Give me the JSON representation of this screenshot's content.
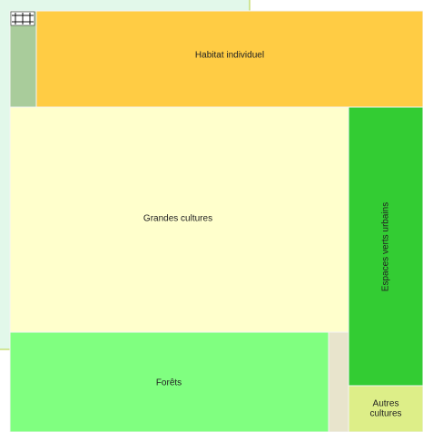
{
  "tiles": [
    {
      "label": "Habitat individuel"
    },
    {
      "label": "Grandes cultures"
    },
    {
      "label": "Espaces verts urbains"
    },
    {
      "label": "Forêts"
    },
    {
      "label": "Autres cultures"
    }
  ]
}
